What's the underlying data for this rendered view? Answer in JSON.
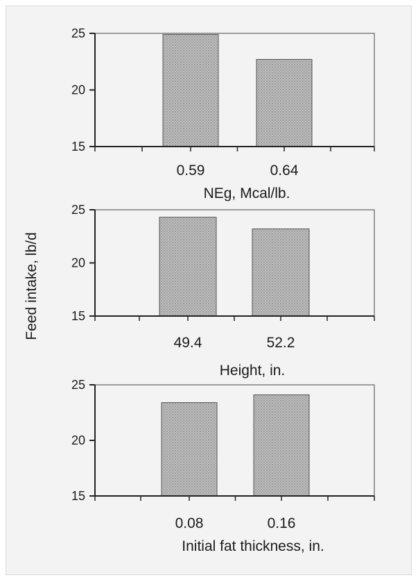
{
  "colors": {
    "bar_fill": "#b3b3b3",
    "axis": "#222222",
    "page_bg": "#f3f3f3"
  },
  "shared_ylabel": "Feed intake, lb/d",
  "chart_data": [
    {
      "type": "bar",
      "categories": [
        "0.59",
        "0.64"
      ],
      "values": [
        24.9,
        22.7
      ],
      "xlabel": "NEg, Mcal/lb.",
      "ylabel": "Feed intake, lb/d",
      "ylim": [
        15,
        25
      ],
      "yticks": [
        "15",
        "20",
        "25"
      ],
      "grid": false
    },
    {
      "type": "bar",
      "categories": [
        "49.4",
        "52.2"
      ],
      "values": [
        24.3,
        23.2
      ],
      "xlabel": "Height, in.",
      "ylabel": "Feed intake, lb/d",
      "ylim": [
        15,
        25
      ],
      "yticks": [
        "15",
        "20",
        "25"
      ],
      "grid": false
    },
    {
      "type": "bar",
      "categories": [
        "0.08",
        "0.16"
      ],
      "values": [
        23.4,
        24.1
      ],
      "xlabel": "Initial fat thickness, in.",
      "ylabel": "Feed intake, lb/d",
      "ylim": [
        15,
        25
      ],
      "yticks": [
        "15",
        "20",
        "25"
      ],
      "grid": false
    }
  ]
}
